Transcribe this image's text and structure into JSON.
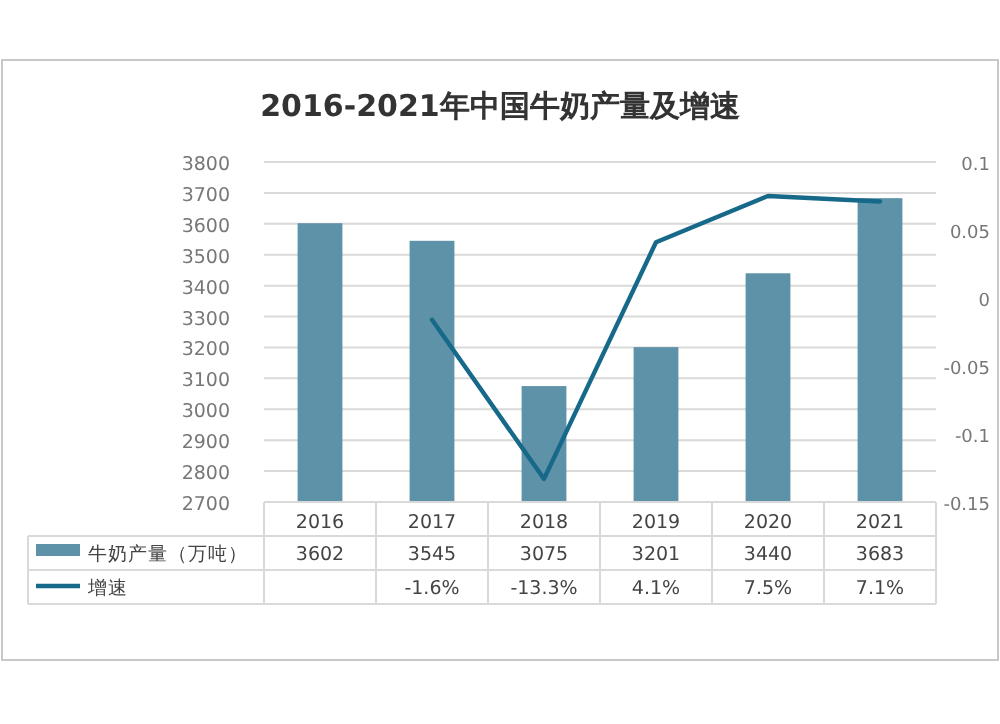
{
  "chart_data": {
    "type": "bar",
    "title": "2016-2021年中国牛奶产量及增速",
    "categories": [
      "2016",
      "2017",
      "2018",
      "2019",
      "2020",
      "2021"
    ],
    "series": [
      {
        "name": "牛奶产量（万吨）",
        "color": "#5e92a8",
        "values": [
          3602,
          3545,
          3075,
          3201,
          3440,
          3683
        ],
        "value_labels": [
          "3602",
          "3545",
          "3075",
          "3201",
          "3440",
          "3683"
        ]
      },
      {
        "name": "增速",
        "type": "line",
        "axis": "y2",
        "color": "#17698a",
        "values": [
          null,
          -0.016,
          -0.133,
          0.041,
          0.075,
          0.071
        ],
        "value_labels": [
          null,
          "-1.6%",
          "-13.3%",
          "4.1%",
          "7.5%",
          "7.1%"
        ]
      }
    ],
    "ylim": [
      2700,
      3800
    ],
    "yticks": [
      2700,
      2800,
      2900,
      3000,
      3100,
      3200,
      3300,
      3400,
      3500,
      3600,
      3700,
      3800
    ],
    "y2lim": [
      -0.15,
      0.1
    ],
    "y2ticks": [
      -0.15,
      -0.1,
      -0.05,
      0,
      0.05,
      0.1
    ],
    "grid": "y",
    "legend": "bottom"
  }
}
